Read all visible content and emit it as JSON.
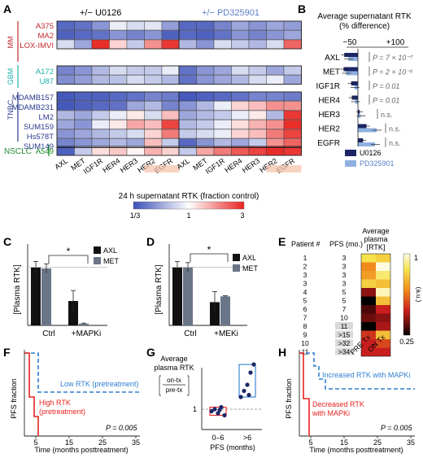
{
  "panels": {
    "A": {
      "letter": "A",
      "header_u0126": "+/− U0126",
      "header_pd": "+/− PD325901",
      "groups": [
        {
          "name": "MM",
          "color": "#c0282d",
          "lines": [
            "A375",
            "MA2",
            "LOX-IMVI"
          ]
        },
        {
          "name": "GBM",
          "color": "#1fb0b0",
          "lines": [
            "A172",
            "U87"
          ]
        },
        {
          "name": "TNBC",
          "color": "#2b3a8f",
          "lines": [
            "MDAMB157",
            "MDAMB231",
            "LM2",
            "SUM159",
            "Hs578T",
            "SUM149"
          ]
        },
        {
          "name": "NSCLC",
          "color": "#1f8a2e",
          "lines": [
            "A549"
          ]
        }
      ],
      "columns": [
        "AXL",
        "MET",
        "IGF1R",
        "HER4",
        "HER3",
        "HER2",
        "EGFR"
      ],
      "heatmap_u0126": [
        [
          -0.85,
          -0.8,
          -0.6,
          -0.1,
          -0.2,
          -0.15,
          -0.55
        ],
        [
          -0.9,
          -0.85,
          -0.8,
          -0.6,
          -0.7,
          -0.6,
          -0.9
        ],
        [
          -0.2,
          -0.5,
          0.95,
          0.2,
          -0.3,
          0.5,
          0.9
        ],
        [
          -0.7,
          -0.6,
          -0.4,
          -0.2,
          -0.3,
          -0.3,
          -0.1
        ],
        [
          -0.65,
          -0.55,
          -0.4,
          -0.35,
          -0.2,
          -0.3,
          -0.4
        ],
        [
          -0.95,
          -0.9,
          -0.9,
          -0.85,
          -0.8,
          -0.7,
          -0.75
        ],
        [
          -0.95,
          -0.9,
          -0.85,
          -0.8,
          -0.5,
          -0.4,
          -0.7
        ],
        [
          -0.4,
          -0.5,
          -0.3,
          -0.1,
          0.1,
          -0.2,
          0.3
        ],
        [
          -0.5,
          -0.6,
          -0.1,
          0.1,
          0.4,
          0.3,
          0.85
        ],
        [
          -0.6,
          -0.5,
          -0.4,
          -0.3,
          -0.2,
          0.2,
          0.6
        ],
        [
          -0.7,
          -0.6,
          -0.5,
          -0.4,
          -0.5,
          0.3,
          -0.3
        ],
        [
          -0.9,
          -0.3,
          0.15,
          0.25,
          0.05,
          0.35,
          0.2
        ]
      ],
      "heatmap_pd": [
        [
          -0.85,
          -0.85,
          -0.7,
          -0.5,
          -0.6,
          -0.5,
          -0.55
        ],
        [
          -0.85,
          -0.9,
          -0.8,
          -0.6,
          -0.7,
          -0.6,
          -0.5
        ],
        [
          -0.4,
          -0.6,
          -0.2,
          -0.3,
          -0.4,
          -0.2,
          0.7
        ],
        [
          -0.8,
          -0.6,
          -0.5,
          -0.2,
          -0.3,
          -0.5,
          -0.3
        ],
        [
          -0.8,
          -0.6,
          -0.5,
          -0.4,
          -0.2,
          -0.1,
          -0.5
        ],
        [
          -0.95,
          -0.9,
          -0.85,
          -0.8,
          -0.7,
          -0.7,
          -0.75
        ],
        [
          -0.6,
          -0.4,
          -0.1,
          0.2,
          0.3,
          0.5,
          0.5
        ],
        [
          -0.5,
          -0.4,
          -0.3,
          -0.1,
          0.1,
          -0.4,
          0.9
        ],
        [
          -0.4,
          -0.3,
          -0.1,
          0.15,
          0.35,
          0.5,
          0.95
        ],
        [
          -0.3,
          -0.2,
          -0.1,
          0.2,
          0.3,
          0.6,
          0.85
        ],
        [
          -0.85,
          -0.6,
          -0.4,
          -0.5,
          -0.3,
          0.5,
          0.7
        ],
        [
          -0.3,
          0.4,
          0.6,
          0.75,
          0.85,
          0.95,
          0.9
        ]
      ],
      "colorbar_title": "24 h supernatant RTK (fraction control)",
      "colorbar_ticks": [
        "1/3",
        "1",
        "3"
      ],
      "colors": {
        "low": "#3b4fb8",
        "mid": "#ffffff",
        "high": "#e8231f"
      }
    },
    "B": {
      "letter": "B",
      "title": "Average supernatant RTK",
      "subtitle": "(% difference)",
      "ticks": [
        "−50",
        "+100"
      ],
      "rows": [
        {
          "label": "AXL",
          "u0126": -40,
          "pd": -28,
          "stat": "P = 7 × 10⁻⁷"
        },
        {
          "label": "MET",
          "u0126": -42,
          "pd": -35,
          "stat": "P = 2 × 10⁻⁶"
        },
        {
          "label": "IGF1R",
          "u0126": -20,
          "pd": -10,
          "stat": "P = 0.01"
        },
        {
          "label": "HER4",
          "u0126": -18,
          "pd": -8,
          "stat": "P = 0.01"
        },
        {
          "label": "HER3",
          "u0126": 5,
          "pd": 8,
          "stat": "n.s."
        },
        {
          "label": "HER2",
          "u0126": 25,
          "pd": 55,
          "stat": "n.s."
        },
        {
          "label": "EGFR",
          "u0126": 15,
          "pd": 50,
          "stat": "n.s."
        }
      ],
      "legend": [
        {
          "name": "U0126",
          "color": "#1c2566"
        },
        {
          "name": "PD325901",
          "color": "#8fb0e0"
        }
      ]
    },
    "C": {
      "letter": "C",
      "ylabel": "[Plasma RTK]",
      "categories": [
        "Ctrl",
        "+MAPKi"
      ],
      "legend": [
        {
          "name": "AXL",
          "color": "#111111"
        },
        {
          "name": "MET",
          "color": "#6b7588"
        }
      ],
      "star": "*",
      "chart_data": {
        "type": "bar",
        "categories": [
          "Ctrl",
          "+MAPKi"
        ],
        "series": [
          {
            "name": "AXL",
            "values": [
              1.0,
              0.42
            ]
          },
          {
            "name": "MET",
            "values": [
              0.98,
              0.03
            ]
          }
        ],
        "ylim": [
          0,
          1.4
        ]
      }
    },
    "D": {
      "letter": "D",
      "ylabel": "[Plasma RTK]",
      "categories": [
        "Ctrl",
        "+MEKi"
      ],
      "legend": [
        {
          "name": "AXL",
          "color": "#111111"
        },
        {
          "name": "MET",
          "color": "#6b7588"
        }
      ],
      "star": "*",
      "chart_data": {
        "type": "bar",
        "categories": [
          "Ctrl",
          "+MEKi"
        ],
        "series": [
          {
            "name": "AXL",
            "values": [
              1.0,
              0.4
            ]
          },
          {
            "name": "MET",
            "values": [
              1.0,
              0.5
            ]
          }
        ],
        "ylim": [
          0,
          1.4
        ]
      }
    },
    "E": {
      "letter": "E",
      "col_patient": "Patient #",
      "col_pfs": "PFS (mo.)",
      "col_rtk_1": "Average",
      "col_rtk_2": "plasma",
      "col_rtk_3": "[RTK]",
      "patients": [
        "1",
        "2",
        "3",
        "3",
        "4",
        "5",
        "6",
        "7",
        "8",
        "9",
        "10",
        "11"
      ],
      "pfs": [
        "3",
        "3",
        "3",
        "3",
        "5",
        "5",
        "7",
        "10",
        "11",
        ">15",
        ">32",
        ">34"
      ],
      "heat_pre": [
        0.8,
        0.55,
        0.6,
        0.75,
        0.2,
        0.0,
        0.1,
        0.15,
        0.0,
        0.35,
        0.3,
        0.3
      ],
      "heat_on": [
        0.75,
        1.0,
        0.85,
        0.7,
        0.95,
        0.7,
        0.3,
        0.2,
        0.25,
        0.7,
        0.4,
        0.3
      ],
      "colorbar_top": "1",
      "colorbar_bottom": "0.25",
      "colorbar_unit": "(a.u.)",
      "xlabels": [
        "PRE Tx",
        "ON Tx"
      ]
    },
    "F": {
      "letter": "F",
      "ylabel": "PFS fraction",
      "xlabel": "Time (months posttreatment)",
      "xticks": [
        "5",
        "15",
        "25",
        "35"
      ],
      "label_low": "Low RTK (pretreatment)",
      "label_high_1": "High RTK",
      "label_high_2": "(pretreatment)",
      "pvalue": "P = 0.005"
    },
    "G": {
      "letter": "G",
      "title_1": "Average",
      "title_2": "plasma RTK",
      "frac_num": "on-tx",
      "frac_den": "pre-tx",
      "ytick": "1",
      "categories": [
        "0–6",
        ">6"
      ],
      "xlabel": "PFS (months)",
      "chart_data": {
        "type": "scatter",
        "categories": [
          "0–6",
          ">6"
        ],
        "series": [
          {
            "name": "0–6",
            "values": [
              0.85,
              0.9,
              0.8,
              0.95,
              0.75,
              0.88
            ]
          },
          {
            "name": ">6",
            "values": [
              1.2,
              1.35,
              1.5,
              1.8,
              2.0,
              1.25
            ]
          }
        ]
      }
    },
    "H": {
      "letter": "H",
      "ylabel": "PFS fraction",
      "xlabel": "Time (months posttreatment)",
      "xticks": [
        "5",
        "15",
        "25",
        "35"
      ],
      "label_inc": "Increased RTK with MAPKi",
      "label_dec_1": "Decreased RTK",
      "label_dec_2": "with MAPKi",
      "pvalue": "P = 0.005"
    }
  }
}
